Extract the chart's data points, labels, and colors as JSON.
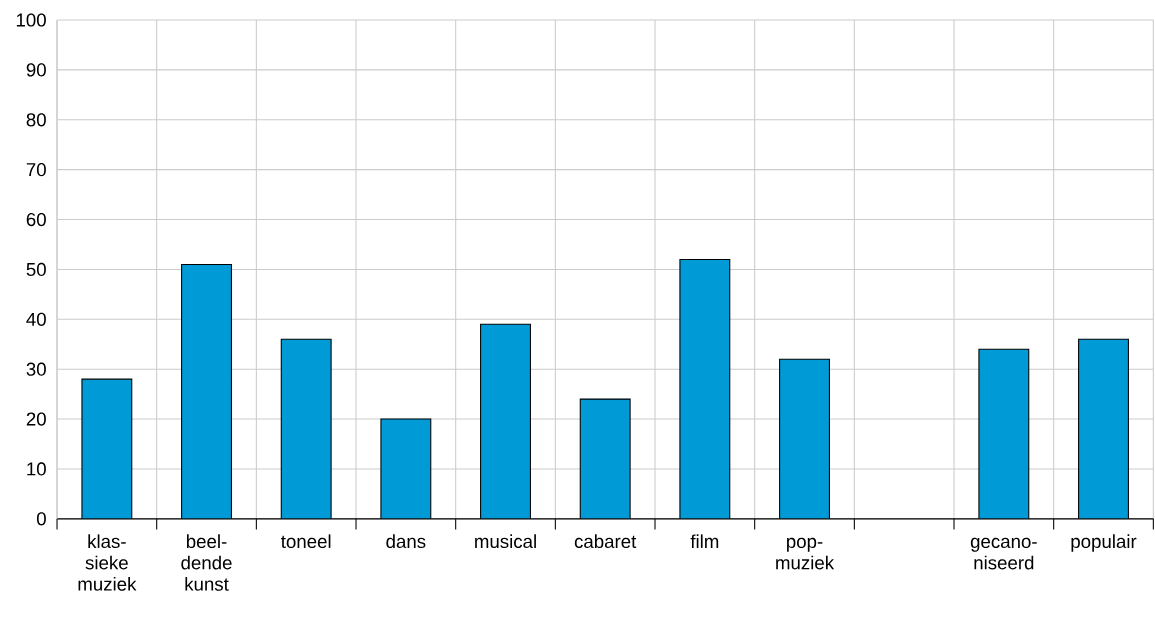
{
  "chart_data": {
    "type": "bar",
    "categories": [
      "klas-sieke muziek",
      "beel-dende kunst",
      "toneel",
      "dans",
      "musical",
      "cabaret",
      "film",
      "pop-muziek",
      null,
      "gecano-niseerd",
      "populair"
    ],
    "values": [
      28,
      51,
      36,
      20,
      39,
      24,
      52,
      32,
      null,
      34,
      36
    ],
    "color": "#009ad6",
    "ylim": [
      0,
      100
    ],
    "yticks": [
      0,
      10,
      20,
      30,
      40,
      50,
      60,
      70,
      80,
      90,
      100
    ],
    "grid": true
  }
}
